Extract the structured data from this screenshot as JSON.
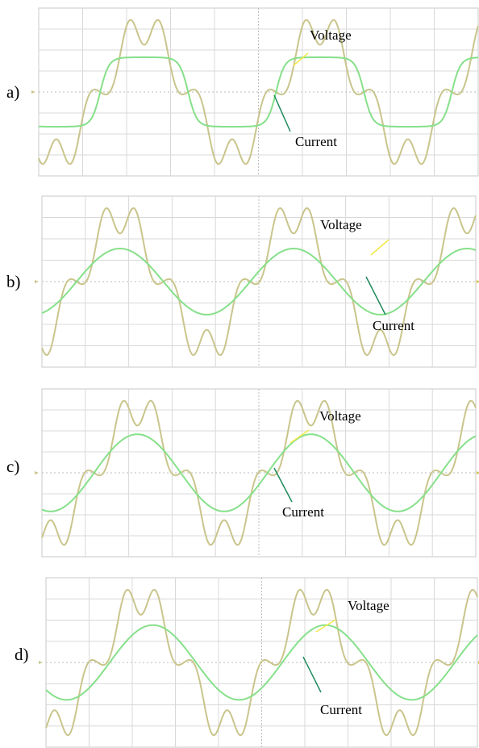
{
  "chart_data": [
    {
      "type": "line",
      "panel_label": "a)",
      "series": [
        {
          "name": "Voltage",
          "color": "#c9c58c"
        },
        {
          "name": "Current",
          "color": "#86e08a"
        }
      ],
      "annotations": [
        "Voltage",
        "Current"
      ],
      "description_values": {
        "periods_shown": 2.5,
        "voltage_peak": 1.0,
        "current_peak": 0.45,
        "current_shape": "flat-topped",
        "phase_shift_deg": 0
      },
      "grid": true
    },
    {
      "type": "line",
      "panel_label": "b)",
      "series": [
        {
          "name": "Voltage",
          "color": "#c9c58c"
        },
        {
          "name": "Current",
          "color": "#86e08a"
        }
      ],
      "annotations": [
        "Voltage",
        "Current"
      ],
      "description_values": {
        "periods_shown": 2.5,
        "voltage_peak": 1.0,
        "current_peak": 0.42,
        "current_shape": "sinusoidal",
        "phase_shift_deg": 0
      },
      "grid": true
    },
    {
      "type": "line",
      "panel_label": "c)",
      "series": [
        {
          "name": "Voltage",
          "color": "#c9c58c"
        },
        {
          "name": "Current",
          "color": "#86e08a"
        }
      ],
      "annotations": [
        "Voltage",
        "Current"
      ],
      "description_values": {
        "periods_shown": 2.5,
        "voltage_peak": 1.0,
        "current_peak": 0.5,
        "current_shape": "sinusoidal",
        "phase_shift_deg": 0
      },
      "grid": true
    },
    {
      "type": "line",
      "panel_label": "d)",
      "series": [
        {
          "name": "Voltage",
          "color": "#c9c58c"
        },
        {
          "name": "Current",
          "color": "#86e08a"
        }
      ],
      "annotations": [
        "Voltage",
        "Current"
      ],
      "description_values": {
        "periods_shown": 2.5,
        "voltage_peak": 1.0,
        "current_peak": 0.48,
        "current_shape": "sinusoidal",
        "phase_shift_deg": 25
      },
      "grid": true
    }
  ],
  "colors": {
    "voltage_trace": "#c9c58c",
    "current_trace": "#86e08a",
    "voltage_pointer": "#f2e84a",
    "current_pointer": "#1f8a5c",
    "grid": "#d8d8d8",
    "frame": "#c8c8c8"
  }
}
